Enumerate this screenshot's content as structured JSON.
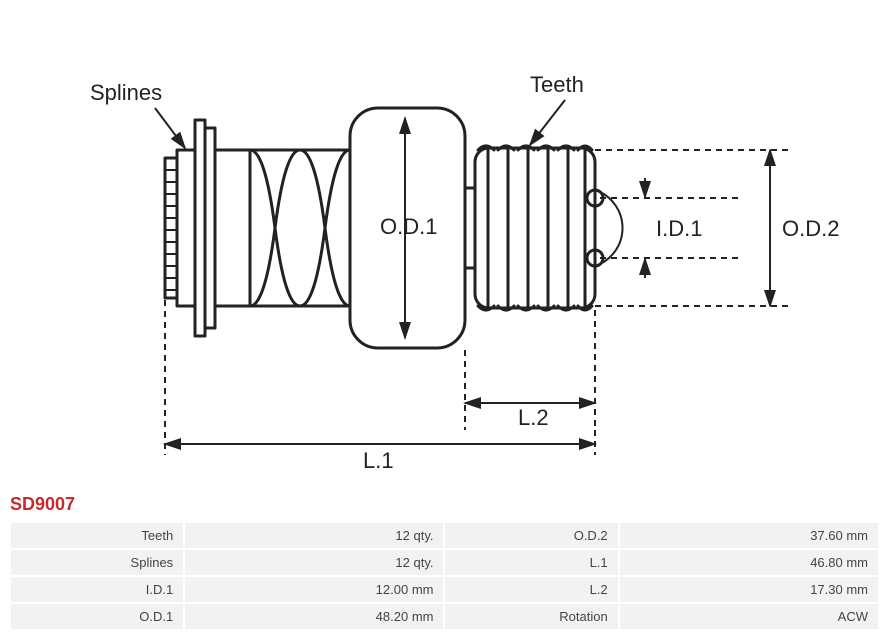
{
  "part_number": "SD9007",
  "diagram": {
    "labels": {
      "splines": "Splines",
      "teeth": "Teeth",
      "od1": "O.D.1",
      "id1": "I.D.1",
      "od2": "O.D.2",
      "l1": "L.1",
      "l2": "L.2"
    },
    "stroke_color": "#222222",
    "stroke_width_main": 3,
    "stroke_width_dim": 2,
    "dash_pattern": "6,5"
  },
  "specs": [
    {
      "label": "Teeth",
      "value": "12 qty.",
      "label2": "O.D.2",
      "value2": "37.60 mm"
    },
    {
      "label": "Splines",
      "value": "12 qty.",
      "label2": "L.1",
      "value2": "46.80 mm"
    },
    {
      "label": "I.D.1",
      "value": "12.00 mm",
      "label2": "L.2",
      "value2": "17.30 mm"
    },
    {
      "label": "O.D.1",
      "value": "48.20 mm",
      "label2": "Rotation",
      "value2": "ACW"
    }
  ]
}
